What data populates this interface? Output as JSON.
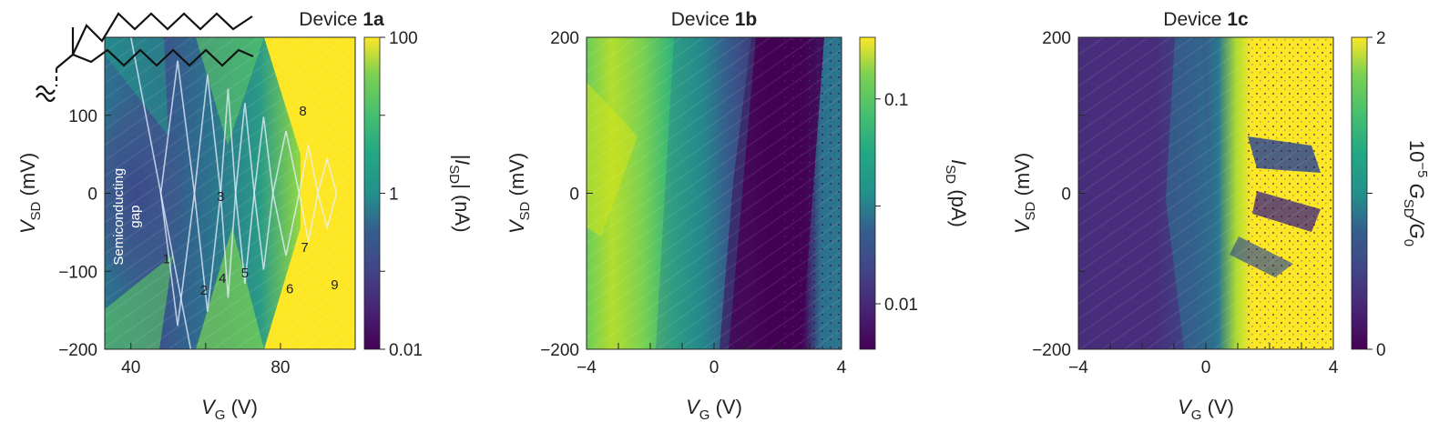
{
  "chart_data": [
    {
      "id": "device-1a",
      "type": "heatmap",
      "title_prefix": "Device ",
      "title_bold": "1a",
      "xlabel_sym": "V",
      "xlabel_sub": "G",
      "xlabel_unit": "(V)",
      "ylabel_sym": "V",
      "ylabel_sub": "SD",
      "ylabel_unit": "(mV)",
      "xlim": [
        33,
        100
      ],
      "ylim": [
        -200,
        200
      ],
      "xticks": [
        {
          "v": 40,
          "label": "40"
        },
        {
          "v": 60,
          "label": ""
        },
        {
          "v": 80,
          "label": "80"
        },
        {
          "v": 100,
          "label": ""
        }
      ],
      "yticks": [
        {
          "v": -200,
          "label": "−200"
        },
        {
          "v": -100,
          "label": "−100"
        },
        {
          "v": 0,
          "label": "0"
        },
        {
          "v": 100,
          "label": "100"
        },
        {
          "v": 200,
          "label": ""
        }
      ],
      "colorbar": {
        "scale": "log",
        "range": [
          0.01,
          100
        ],
        "ticks": [
          {
            "v": 0.01,
            "label": "0.01"
          },
          {
            "v": 0.1,
            "label": ""
          },
          {
            "v": 1,
            "label": "1"
          },
          {
            "v": 10,
            "label": ""
          },
          {
            "v": 100,
            "label": "100"
          }
        ],
        "label_prefix": "|I",
        "label_sub": "SD",
        "label_suffix": "| (nA)"
      },
      "annotations": [
        {
          "text": "1",
          "x": 49.5,
          "y": -90
        },
        {
          "text": "2",
          "x": 59.5,
          "y": -130
        },
        {
          "text": "3",
          "x": 64,
          "y": -10
        },
        {
          "text": "4",
          "x": 64.5,
          "y": -115
        },
        {
          "text": "5",
          "x": 70.5,
          "y": -108
        },
        {
          "text": "6",
          "x": 82.5,
          "y": -128
        },
        {
          "text": "7",
          "x": 86.5,
          "y": -75
        },
        {
          "text": "8",
          "x": 86,
          "y": 100
        },
        {
          "text": "9",
          "x": 94.5,
          "y": -123
        }
      ],
      "gap_label_lines": [
        "Semiconducting",
        "gap"
      ],
      "diamond_vertices_VG": [
        48,
        57,
        64,
        68,
        73,
        78,
        85,
        90,
        95
      ],
      "colormap": "viridis"
    },
    {
      "id": "device-1b",
      "type": "heatmap",
      "title_prefix": "Device ",
      "title_bold": "1b",
      "xlabel_sym": "V",
      "xlabel_sub": "G",
      "xlabel_unit": "(V)",
      "ylabel_sym": "V",
      "ylabel_sub": "SD",
      "ylabel_unit": "(mV)",
      "xlim": [
        -4,
        4
      ],
      "ylim": [
        -200,
        200
      ],
      "xticks": [
        {
          "v": -4,
          "label": "−4"
        },
        {
          "v": -3,
          "label": ""
        },
        {
          "v": -2,
          "label": ""
        },
        {
          "v": -1,
          "label": ""
        },
        {
          "v": 0,
          "label": "0"
        },
        {
          "v": 1,
          "label": ""
        },
        {
          "v": 2,
          "label": ""
        },
        {
          "v": 3,
          "label": ""
        },
        {
          "v": 4,
          "label": "4"
        }
      ],
      "yticks": [
        {
          "v": -200,
          "label": "−200"
        },
        {
          "v": 0,
          "label": "0"
        },
        {
          "v": 200,
          "label": "200"
        }
      ],
      "colorbar": {
        "scale": "log",
        "range": [
          0.006,
          0.2
        ],
        "ticks": [
          {
            "v": 0.01,
            "label": "0.01"
          },
          {
            "v": 0.03,
            "label": ""
          },
          {
            "v": 0.1,
            "label": "0.1"
          }
        ],
        "label_prefix": "I",
        "label_sub": "SD",
        "label_suffix": " (pA)"
      },
      "colormap": "viridis"
    },
    {
      "id": "device-1c",
      "type": "heatmap",
      "title_prefix": "Device ",
      "title_bold": "1c",
      "xlabel_sym": "V",
      "xlabel_sub": "G",
      "xlabel_unit": "(V)",
      "ylabel_sym": "V",
      "ylabel_sub": "SD",
      "ylabel_unit": "(mV)",
      "xlim": [
        -4,
        4
      ],
      "ylim": [
        -200,
        200
      ],
      "xticks": [
        {
          "v": -4,
          "label": "−4"
        },
        {
          "v": -3,
          "label": ""
        },
        {
          "v": -2,
          "label": ""
        },
        {
          "v": -1,
          "label": ""
        },
        {
          "v": 0,
          "label": "0"
        },
        {
          "v": 1,
          "label": ""
        },
        {
          "v": 2,
          "label": ""
        },
        {
          "v": 3,
          "label": ""
        },
        {
          "v": 4,
          "label": "4"
        }
      ],
      "yticks": [
        {
          "v": -200,
          "label": "−200"
        },
        {
          "v": -100,
          "label": ""
        },
        {
          "v": 0,
          "label": "0"
        },
        {
          "v": 100,
          "label": ""
        },
        {
          "v": 200,
          "label": "200"
        }
      ],
      "colorbar": {
        "scale": "linear",
        "range": [
          0,
          2
        ],
        "ticks": [
          {
            "v": 0,
            "label": "0"
          },
          {
            "v": 1,
            "label": ""
          },
          {
            "v": 2,
            "label": "2"
          }
        ],
        "label_prefix": "10",
        "label_sup": "−5",
        "label_mid": " G",
        "label_sub": "SD",
        "label_suffix": "/G",
        "label_sub2": "0"
      },
      "colormap": "viridis"
    }
  ]
}
